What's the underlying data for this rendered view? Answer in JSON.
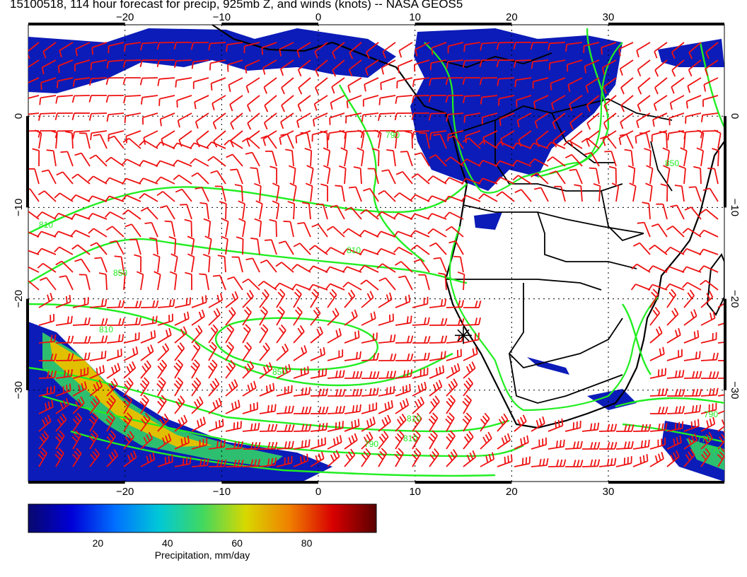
{
  "title": "15100518, 114 hour forecast for precip, 925mb Z, and winds (knots) -- NASA GEOS5",
  "map": {
    "lon_range": [
      -30,
      42
    ],
    "lat_range": [
      -40,
      10
    ],
    "lon_ticks": [
      -20,
      -10,
      0,
      10,
      20,
      30
    ],
    "lat_ticks": [
      0,
      -10,
      -20,
      -30
    ],
    "lon_tick_labels": [
      "−20",
      "−10",
      "0",
      "10",
      "20",
      "30"
    ],
    "lat_tick_labels": [
      "0",
      "−10",
      "−20",
      "−30"
    ],
    "marker_location": {
      "lon": 15,
      "lat": -24
    },
    "contour_labels": [
      "810",
      "810",
      "850",
      "810",
      "790",
      "810",
      "850",
      "770",
      "810",
      "790",
      "850",
      "790",
      "770"
    ],
    "colors": {
      "contour": "#22ee22",
      "wind_barb": "#ee1111",
      "coast": "#000000"
    }
  },
  "colorbar": {
    "range": [
      0,
      100
    ],
    "ticks": [
      "20",
      "40",
      "60",
      "80"
    ],
    "tick_values": [
      20,
      40,
      60,
      80
    ],
    "label": "Precipitation, mm/day",
    "colors": [
      "#08086e",
      "#0000d8",
      "#0070ff",
      "#00c8d8",
      "#40d860",
      "#d8d800",
      "#f08000",
      "#d80000",
      "#5a0000"
    ]
  }
}
